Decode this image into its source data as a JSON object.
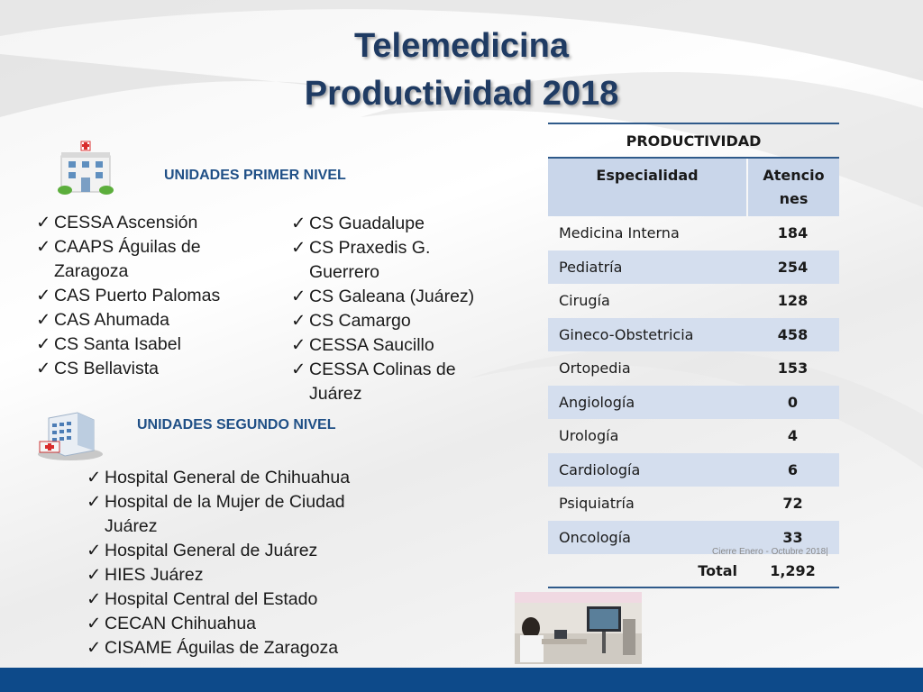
{
  "title": {
    "line1": "Telemedicina",
    "line2": "Productividad 2018"
  },
  "primer_nivel": {
    "heading": "UNIDADES PRIMER NIVEL",
    "icon": "hospital-building-icon",
    "col1": [
      "CESSA Ascensión",
      "CAAPS Águilas de",
      "Zaragoza",
      "CAS Puerto Palomas",
      "CAS Ahumada",
      "CS Santa Isabel",
      "CS Bellavista"
    ],
    "col2": [
      "CS Guadalupe",
      "CS Praxedis G.",
      "Guerrero",
      "CS Galeana (Juárez)",
      "CS Camargo",
      "CESSA Saucillo",
      "CESSA Colinas de",
      "Juárez"
    ]
  },
  "segundo_nivel": {
    "heading": "UNIDADES SEGUNDO NIVEL",
    "icon": "hospital-complex-icon",
    "items": [
      "Hospital General de Chihuahua",
      "Hospital de la Mujer de Ciudad",
      "Juárez",
      "Hospital General de Juárez",
      "HIES Juárez",
      "Hospital Central del Estado",
      "CECAN Chihuahua",
      "CISAME Águilas de Zaragoza"
    ]
  },
  "check_glyph": "✓",
  "table": {
    "caption": "PRODUCTIVIDAD",
    "col1": "Especialidad",
    "col2_line1": "Atencio",
    "col2_line2": "nes",
    "rows": [
      {
        "name": "Medicina Interna",
        "value": "184"
      },
      {
        "name": "Pediatría",
        "value": "254"
      },
      {
        "name": "Cirugía",
        "value": "128"
      },
      {
        "name": "Gineco-Obstetricia",
        "value": "458"
      },
      {
        "name": "Ortopedia",
        "value": "153"
      },
      {
        "name": "Angiología",
        "value": "0"
      },
      {
        "name": "Urología",
        "value": "4"
      },
      {
        "name": "Cardiología",
        "value": "6"
      },
      {
        "name": "Psiquiatría",
        "value": "72"
      },
      {
        "name": "Oncología",
        "value": "33"
      }
    ],
    "total_label": "Total",
    "total_value": "1,292",
    "footnote": "Cierre Enero - Octubre 2018|"
  },
  "colors": {
    "title": "#1f3b63",
    "heading": "#1f4f86",
    "table_shade": "#d4deee",
    "footer": "#0d4a8a"
  }
}
